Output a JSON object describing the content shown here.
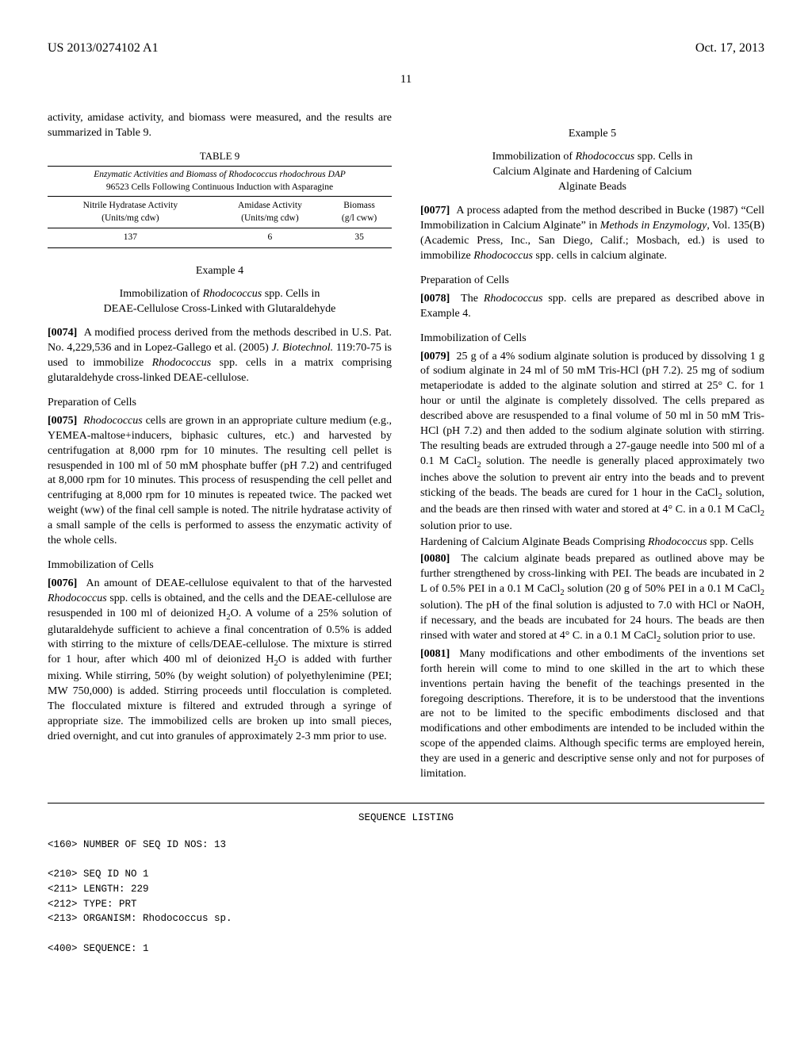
{
  "header": {
    "pub_number": "US 2013/0274102 A1",
    "pub_date": "Oct. 17, 2013",
    "page_number": "11"
  },
  "col1": {
    "intro": "activity, amidase activity, and biomass were measured, and the results are summarized in Table 9.",
    "table9": {
      "label": "TABLE 9",
      "caption_l1": "Enzymatic Activities and Biomass of Rhodococcus rhodochrous DAP",
      "caption_l2": "96523 Cells Following Continuous Induction with Asparagine",
      "h1a": "Nitrile Hydratase Activity",
      "h1b": "(Units/mg cdw)",
      "h2a": "Amidase Activity",
      "h2b": "(Units/mg cdw)",
      "h3a": "Biomass",
      "h3b": "(g/l cww)",
      "v1": "137",
      "v2": "6",
      "v3": "35"
    },
    "ex4_title": "Example 4",
    "ex4_sub": "Immobilization of Rhodococcus spp. Cells in DEAE-Cellulose Cross-Linked with Glutaraldehyde",
    "p0074_num": "[0074]",
    "p0074": "A modified process derived from the methods described in U.S. Pat. No. 4,229,536 and in Lopez-Gallego et al. (2005) J. Biotechnol. 119:70-75 is used to immobilize Rhodococcus spp. cells in a matrix comprising glutaraldehyde cross-linked DEAE-cellulose.",
    "prep_head": "Preparation of Cells",
    "p0075_num": "[0075]",
    "p0075": "Rhodococcus cells are grown in an appropriate culture medium (e.g., YEMEA-maltose+inducers, biphasic cultures, etc.) and harvested by centrifugation at 8,000 rpm for 10 minutes. The resulting cell pellet is resuspended in 100 ml of 50 mM phosphate buffer (pH 7.2) and centrifuged at 8,000 rpm for 10 minutes. This process of resuspending the cell pellet and centrifuging at 8,000 rpm for 10 minutes is repeated twice. The packed wet weight (ww) of the final cell sample is noted. The nitrile hydratase activity of a small sample of the cells is performed to assess the enzymatic activity of the whole cells.",
    "immob_head": "Immobilization of Cells",
    "p0076_num": "[0076]",
    "p0076": "An amount of DEAE-cellulose equivalent to that of the harvested Rhodococcus spp. cells is obtained, and the cells and the DEAE-cellulose are resuspended in 100 ml of deionized H₂O. A volume of a 25% solution of glutaraldehyde sufficient to achieve a final concentration of 0.5% is added with stirring to the mixture of cells/DEAE-cellulose. The mixture is stirred for 1 hour, after which 400 ml of deionized H₂O is added with further mixing. While stirring, 50% (by weight solution) of polyethylenimine (PEI; MW 750,000) is added. Stirring proceeds until flocculation is completed. The flocculated mixture is filtered and extruded through a syringe of appropriate size. The immobilized cells are broken up into small pieces, dried overnight, and cut into granules of approximately 2-3 mm prior to use."
  },
  "col2": {
    "ex5_title": "Example 5",
    "ex5_sub": "Immobilization of Rhodococcus spp. Cells in Calcium Alginate and Hardening of Calcium Alginate Beads",
    "p0077_num": "[0077]",
    "p0077": "A process adapted from the method described in Bucke (1987) “Cell Immobilization in Calcium Alginate” in Methods in Enzymology, Vol. 135(B) (Academic Press, Inc., San Diego, Calif.; Mosbach, ed.) is used to immobilize Rhodococcus spp. cells in calcium alginate.",
    "prep_head": "Preparation of Cells",
    "p0078_num": "[0078]",
    "p0078": "The Rhodococcus spp. cells are prepared as described above in Example 4.",
    "immob_head": "Immobilization of Cells",
    "p0079_num": "[0079]",
    "p0079": "25 g of a 4% sodium alginate solution is produced by dissolving 1 g of sodium alginate in 24 ml of 50 mM Tris-HCl (pH 7.2). 25 mg of sodium metaperiodate is added to the alginate solution and stirred at 25° C. for 1 hour or until the alginate is completely dissolved. The cells prepared as described above are resuspended to a final volume of 50 ml in 50 mM Tris-HCl (pH 7.2) and then added to the sodium alginate solution with stirring. The resulting beads are extruded through a 27-gauge needle into 500 ml of a 0.1 M CaCl₂ solution. The needle is generally placed approximately two inches above the solution to prevent air entry into the beads and to prevent sticking of the beads. The beads are cured for 1 hour in the CaCl₂ solution, and the beads are then rinsed with water and stored at 4° C. in a 0.1 M CaCl₂ solution prior to use.",
    "harden_head": "Hardening of Calcium Alginate Beads Comprising Rhodococcus spp. Cells",
    "p0080_num": "[0080]",
    "p0080": "The calcium alginate beads prepared as outlined above may be further strengthened by cross-linking with PEI. The beads are incubated in 2 L of 0.5% PEI in a 0.1 M CaCl₂ solution (20 g of 50% PEI in a 0.1 M CaCl₂ solution). The pH of the final solution is adjusted to 7.0 with HCl or NaOH, if necessary, and the beads are incubated for 24 hours. The beads are then rinsed with water and stored at 4° C. in a 0.1 M CaCl₂ solution prior to use.",
    "p0081_num": "[0081]",
    "p0081": "Many modifications and other embodiments of the inventions set forth herein will come to mind to one skilled in the art to which these inventions pertain having the benefit of the teachings presented in the foregoing descriptions. Therefore, it is to be understood that the inventions are not to be limited to the specific embodiments disclosed and that modifications and other embodiments are intended to be included within the scope of the appended claims. Although specific terms are employed herein, they are used in a generic and descriptive sense only and not for purposes of limitation."
  },
  "seq": {
    "title": "SEQUENCE LISTING",
    "l1": "<160> NUMBER OF SEQ ID NOS: 13",
    "l2": "<210> SEQ ID NO 1",
    "l3": "<211> LENGTH: 229",
    "l4": "<212> TYPE: PRT",
    "l5": "<213> ORGANISM: Rhodococcus sp.",
    "l6": "<400> SEQUENCE: 1"
  }
}
